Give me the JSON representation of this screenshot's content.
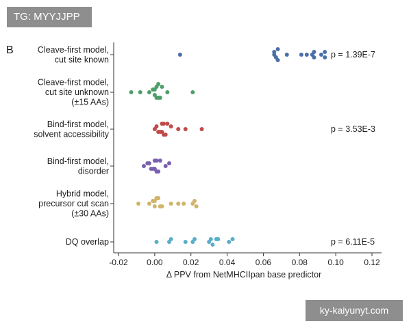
{
  "watermark_top": "TG: MYYJJPP",
  "watermark_bottom": "ky-kaiyunyt.com",
  "panel_letter": "B",
  "chart_data": {
    "type": "scatter",
    "orientation": "horizontal-strip",
    "xlabel": "Δ PPV from NetMHCIIpan base predictor",
    "xlim": [
      -0.02,
      0.125
    ],
    "xticks": [
      -0.02,
      0.0,
      0.02,
      0.04,
      0.06,
      0.08,
      0.1,
      0.12
    ],
    "xtick_labels": [
      "-0.02",
      "0.00",
      "0.02",
      "0.04",
      "0.06",
      "0.08",
      "0.10",
      "0.12"
    ],
    "categories": [
      {
        "lines": [
          "Cleave-first model,",
          "cut site known"
        ],
        "color": "#4a6fa8",
        "pvalue": "p = 1.39E-7",
        "values": [
          0.014,
          0.066,
          0.066,
          0.067,
          0.068,
          0.068,
          0.073,
          0.081,
          0.084,
          0.087,
          0.088,
          0.088,
          0.092,
          0.094,
          0.094
        ]
      },
      {
        "lines": [
          "Cleave-first model,",
          "cut site unknown",
          "(±15 AAs)"
        ],
        "color": "#4d9e68",
        "pvalue": "",
        "values": [
          -0.013,
          -0.008,
          -0.003,
          -0.001,
          0.0,
          0.0,
          0.001,
          0.001,
          0.002,
          0.002,
          0.003,
          0.004,
          0.007,
          0.021
        ]
      },
      {
        "lines": [
          "Bind-first model,",
          "solvent accessibility"
        ],
        "color": "#c14a4a",
        "pvalue": "p = 3.53E-3",
        "values": [
          0.0,
          0.001,
          0.002,
          0.003,
          0.004,
          0.004,
          0.005,
          0.005,
          0.006,
          0.007,
          0.009,
          0.013,
          0.017,
          0.026
        ]
      },
      {
        "lines": [
          "Bind-first model,",
          "disorder"
        ],
        "color": "#7a5fb0",
        "pvalue": "",
        "values": [
          -0.006,
          -0.004,
          -0.003,
          -0.002,
          -0.001,
          0.0,
          0.0,
          0.001,
          0.001,
          0.002,
          0.003,
          0.006,
          0.008
        ]
      },
      {
        "lines": [
          "Hybrid model,",
          "precursor cut scan",
          "(±30 AAs)"
        ],
        "color": "#d1b36a",
        "pvalue": "",
        "values": [
          -0.009,
          -0.003,
          -0.001,
          0.0,
          0.0,
          0.001,
          0.002,
          0.003,
          0.004,
          0.009,
          0.013,
          0.016,
          0.021,
          0.022,
          0.023
        ]
      },
      {
        "lines": [
          "DQ overlap"
        ],
        "color": "#5aaec9",
        "pvalue": "p = 6.11E-5",
        "values": [
          0.001,
          0.008,
          0.009,
          0.017,
          0.021,
          0.022,
          0.03,
          0.031,
          0.032,
          0.034,
          0.035,
          0.041,
          0.043
        ]
      }
    ]
  }
}
